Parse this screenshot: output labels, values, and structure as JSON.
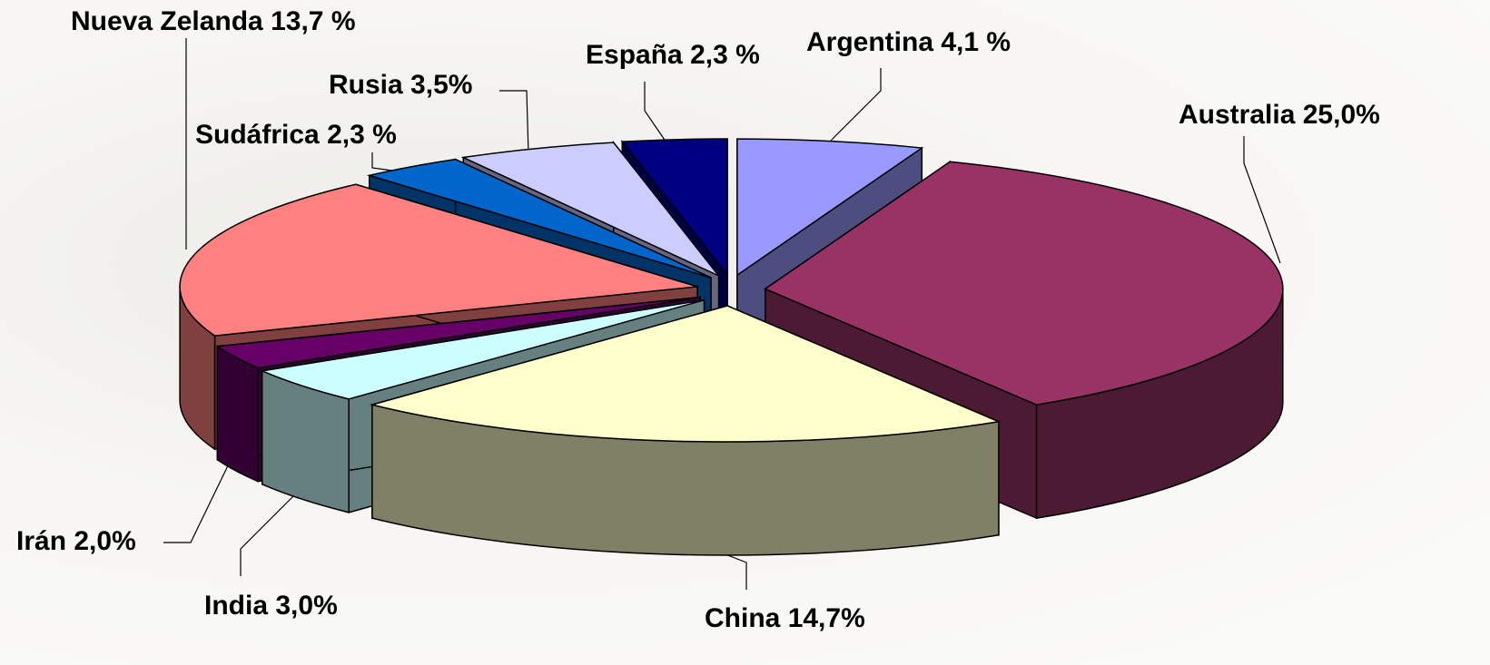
{
  "chart_data": {
    "type": "pie3d",
    "categories": [
      "Argentina",
      "Australia",
      "China",
      "India",
      "Irán",
      "Nueva Zelanda",
      "Sudáfrica",
      "Rusia",
      "España"
    ],
    "values": [
      4.1,
      25.0,
      14.7,
      3.0,
      2.0,
      13.7,
      2.3,
      3.5,
      2.3
    ],
    "value_labels": [
      "4,1 %",
      "25,0%",
      "14,7%",
      "3,0%",
      "2,0%",
      "13,7 %",
      "2,3 %",
      "3,5%",
      "2,3 %"
    ],
    "colors": [
      "#9999ff",
      "#993366",
      "#ffffcc",
      "#ccffff",
      "#660066",
      "#ff8080",
      "#0066cc",
      "#ccccff",
      "#000080"
    ]
  }
}
